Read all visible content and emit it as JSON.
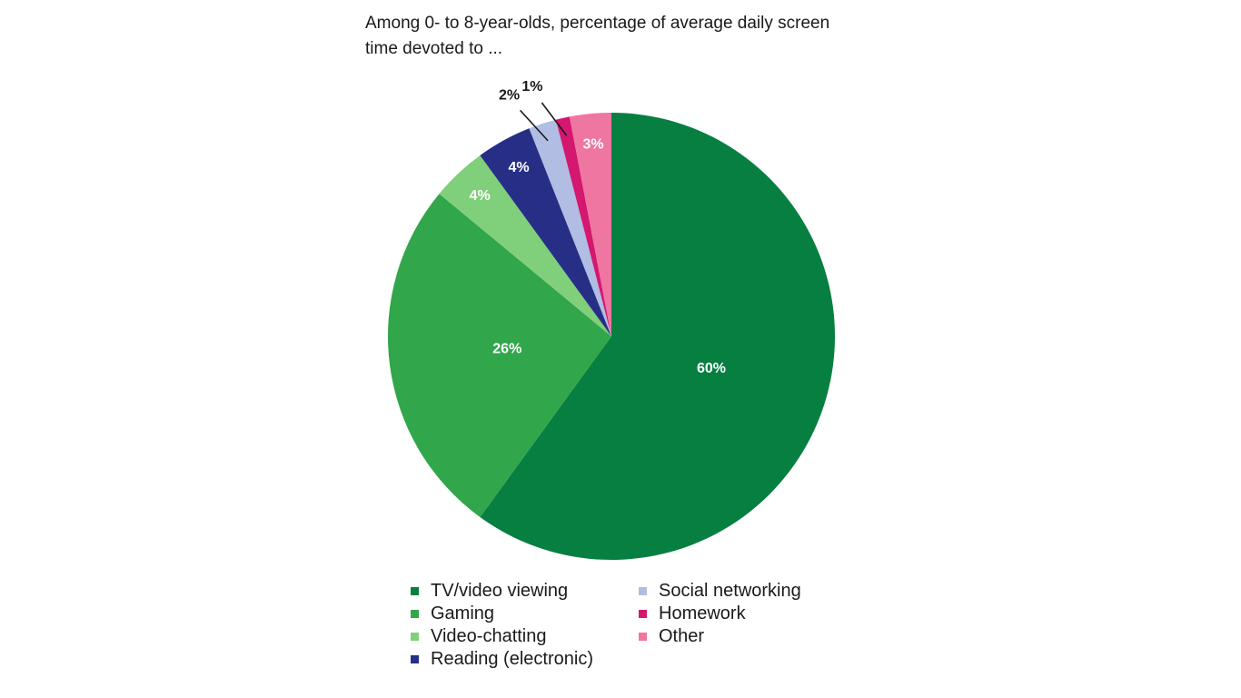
{
  "chart_data": {
    "type": "pie",
    "title": "Among 0- to 8-year-olds, percentage of average daily screen time devoted to ...",
    "title_lines": [
      "Among 0- to 8-year-olds, percentage of average daily screen",
      "time devoted to ..."
    ],
    "start_angle_deg": 0,
    "direction": "clockwise",
    "legend_position": "bottom",
    "slices": [
      {
        "name": "TV/video viewing",
        "value": 60,
        "label": "60%",
        "color": "#077f41",
        "label_color": "#ffffff",
        "label_inside": true
      },
      {
        "name": "Gaming",
        "value": 26,
        "label": "26%",
        "color": "#31a64b",
        "label_color": "#ffffff",
        "label_inside": true
      },
      {
        "name": "Video-chatting",
        "value": 4,
        "label": "4%",
        "color": "#80cf7a",
        "label_color": "#ffffff",
        "label_inside": true
      },
      {
        "name": "Reading (electronic)",
        "value": 4,
        "label": "4%",
        "color": "#262f85",
        "label_color": "#ffffff",
        "label_inside": true
      },
      {
        "name": "Social networking",
        "value": 2,
        "label": "2%",
        "color": "#b1bde3",
        "label_color": "#1a1a1a",
        "label_inside": false
      },
      {
        "name": "Homework",
        "value": 1,
        "label": "1%",
        "color": "#d4176f",
        "label_color": "#1a1a1a",
        "label_inside": false
      },
      {
        "name": "Other",
        "value": 3,
        "label": "3%",
        "color": "#ef76a1",
        "label_color": "#ffffff",
        "label_inside": true
      }
    ],
    "legend_order": [
      "TV/video viewing",
      "Gaming",
      "Video-chatting",
      "Reading (electronic)",
      "Social networking",
      "Homework",
      "Other"
    ]
  }
}
